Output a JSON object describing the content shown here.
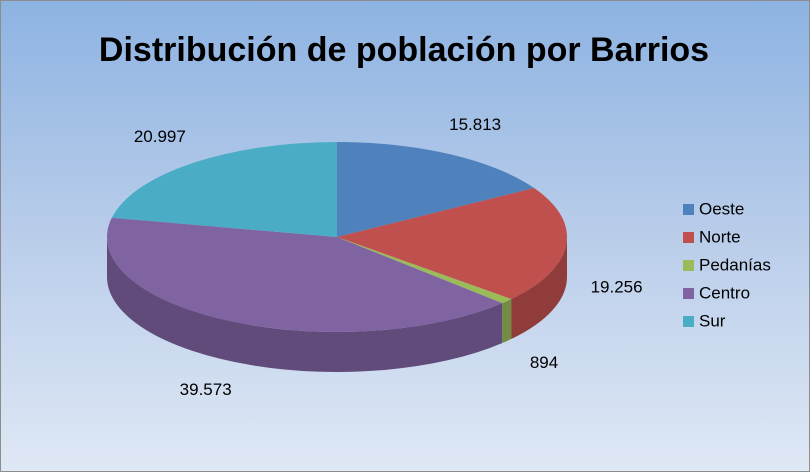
{
  "chart_data": {
    "type": "pie",
    "title": "Distribución de población por Barrios",
    "categories": [
      "Oeste",
      "Norte",
      "Pedanías",
      "Centro",
      "Sur"
    ],
    "values": [
      15813,
      19256,
      894,
      39573,
      20997
    ],
    "value_labels": [
      "15.813",
      "19.256",
      "894",
      "39.573",
      "20.997"
    ],
    "colors": [
      "#4f81bd",
      "#c0504d",
      "#9bbb59",
      "#8064a2",
      "#4bacc6"
    ],
    "legend": "right"
  }
}
